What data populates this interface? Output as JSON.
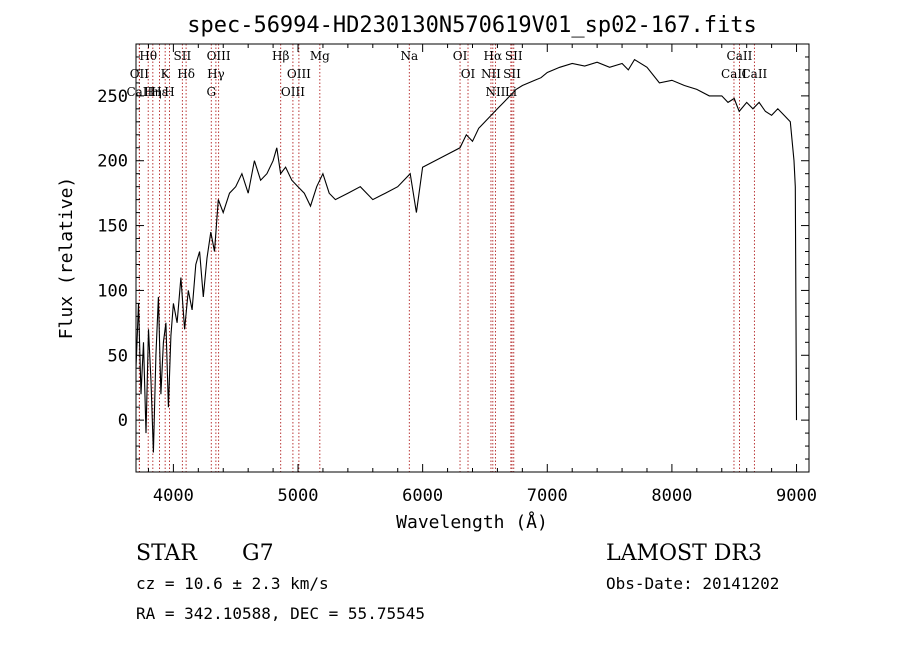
{
  "chart_data": {
    "type": "line",
    "title": "spec-56994-HD230130N570619V01_sp02-167.fits",
    "xlabel": "Wavelength (Å)",
    "ylabel": "Flux (relative)",
    "xlim": [
      3700,
      9100
    ],
    "ylim": [
      -40,
      290
    ],
    "x_ticks": [
      4000,
      5000,
      6000,
      7000,
      8000,
      9000
    ],
    "y_ticks": [
      0,
      50,
      100,
      150,
      200,
      250
    ],
    "grid": false,
    "series": [
      {
        "color": "#000000",
        "x": [
          3700,
          3720,
          3740,
          3760,
          3780,
          3800,
          3820,
          3840,
          3860,
          3880,
          3900,
          3920,
          3940,
          3960,
          3980,
          4000,
          4030,
          4060,
          4090,
          4120,
          4150,
          4180,
          4210,
          4240,
          4270,
          4300,
          4330,
          4360,
          4400,
          4450,
          4500,
          4550,
          4600,
          4650,
          4700,
          4750,
          4800,
          4830,
          4860,
          4900,
          4950,
          5000,
          5050,
          5100,
          5150,
          5200,
          5250,
          5300,
          5400,
          5500,
          5600,
          5700,
          5800,
          5900,
          5950,
          6000,
          6100,
          6200,
          6300,
          6350,
          6400,
          6450,
          6500,
          6550,
          6600,
          6650,
          6700,
          6750,
          6800,
          6850,
          6900,
          6950,
          7000,
          7100,
          7200,
          7300,
          7400,
          7500,
          7600,
          7650,
          7700,
          7800,
          7900,
          8000,
          8100,
          8200,
          8300,
          8400,
          8450,
          8500,
          8540,
          8600,
          8650,
          8700,
          8750,
          8800,
          8850,
          8900,
          8950,
          8980,
          8990,
          9000
        ],
        "values": [
          40,
          90,
          20,
          60,
          -10,
          70,
          30,
          -25,
          50,
          95,
          20,
          60,
          75,
          10,
          65,
          90,
          75,
          110,
          70,
          100,
          85,
          120,
          130,
          95,
          125,
          145,
          130,
          170,
          160,
          175,
          180,
          190,
          175,
          200,
          185,
          190,
          200,
          210,
          190,
          195,
          185,
          180,
          175,
          165,
          180,
          190,
          175,
          170,
          175,
          180,
          170,
          175,
          180,
          190,
          160,
          195,
          200,
          205,
          210,
          220,
          215,
          225,
          230,
          235,
          240,
          245,
          250,
          255,
          258,
          260,
          262,
          264,
          268,
          272,
          275,
          273,
          276,
          272,
          275,
          270,
          278,
          272,
          260,
          262,
          258,
          255,
          250,
          250,
          245,
          248,
          238,
          245,
          240,
          245,
          238,
          235,
          240,
          235,
          230,
          200,
          180,
          0
        ]
      }
    ],
    "line_markers": [
      {
        "label": "Hθ",
        "wavelength": 3798
      },
      {
        "label": "OII",
        "wavelength": 3727
      },
      {
        "label": "CaII",
        "wavelength": 3727
      },
      {
        "label": "K",
        "wavelength": 3934
      },
      {
        "label": "Hε",
        "wavelength": 3889
      },
      {
        "label": "Hη",
        "wavelength": 3835
      },
      {
        "label": "SII",
        "wavelength": 4072
      },
      {
        "label": "H",
        "wavelength": 3969
      },
      {
        "label": "Hδ",
        "wavelength": 4102
      },
      {
        "label": "OIII",
        "wavelength": 4363
      },
      {
        "label": "Hγ",
        "wavelength": 4341
      },
      {
        "label": "G",
        "wavelength": 4304
      },
      {
        "label": "Hβ",
        "wavelength": 4861
      },
      {
        "label": "OIII",
        "wavelength": 5007
      },
      {
        "label": "OIII",
        "wavelength": 4959
      },
      {
        "label": "Mg",
        "wavelength": 5175
      },
      {
        "label": "Na",
        "wavelength": 5893
      },
      {
        "label": "OI",
        "wavelength": 6300
      },
      {
        "label": "OI",
        "wavelength": 6364
      },
      {
        "label": "Hα",
        "wavelength": 6563
      },
      {
        "label": "NII",
        "wavelength": 6548
      },
      {
        "label": "NII",
        "wavelength": 6584
      },
      {
        "label": "SII",
        "wavelength": 6717
      },
      {
        "label": "Li",
        "wavelength": 6708
      },
      {
        "label": "SII",
        "wavelength": 6731
      },
      {
        "label": "CaII",
        "wavelength": 8542
      },
      {
        "label": "CaII",
        "wavelength": 8498
      },
      {
        "label": "CaII",
        "wavelength": 8662
      }
    ]
  },
  "info": {
    "object_class": "STAR",
    "subclass": "G7",
    "survey": "LAMOST DR3",
    "cz_line": "cz = 10.6 ± 2.3 km/s",
    "obs_date_line": "Obs-Date: 20141202",
    "coords_line": "RA = 342.10588, DEC =  55.75545"
  },
  "colors": {
    "marker_line": "#b22222",
    "spectrum": "#000000"
  }
}
